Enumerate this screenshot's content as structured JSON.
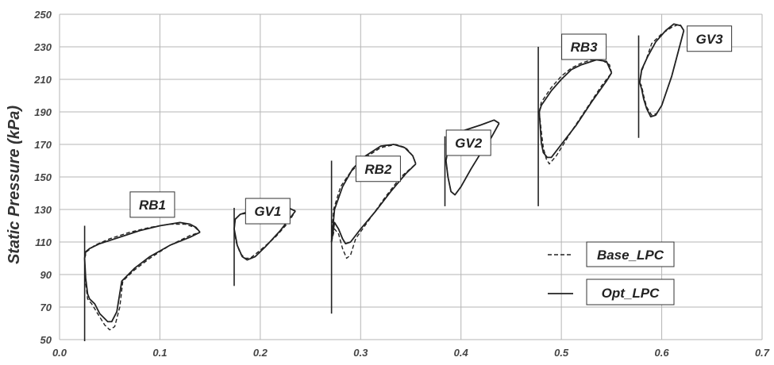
{
  "chart_data": {
    "type": "line",
    "title": "",
    "xlabel": "",
    "ylabel": "Static Pressure (kPa)",
    "xlim": [
      0.0,
      0.7
    ],
    "ylim": [
      50,
      250
    ],
    "x_ticks": [
      "0.0",
      "0.1",
      "0.2",
      "0.3",
      "0.4",
      "0.5",
      "0.6",
      "0.7"
    ],
    "y_ticks": [
      "50",
      "70",
      "90",
      "110",
      "130",
      "150",
      "170",
      "190",
      "210",
      "230",
      "250"
    ],
    "grid": true,
    "legend_position": "bottom-right",
    "legend": [
      "Base_LPC",
      "Opt_LPC"
    ],
    "blade_rows": [
      {
        "label": "RB1",
        "label_pos": [
          0.0925,
          133
        ],
        "base_upper": [
          [
            0.025,
            100
          ],
          [
            0.027,
            104
          ],
          [
            0.035,
            108
          ],
          [
            0.05,
            112
          ],
          [
            0.07,
            116
          ],
          [
            0.09,
            119
          ],
          [
            0.11,
            121
          ],
          [
            0.125,
            121
          ],
          [
            0.135,
            119
          ],
          [
            0.14,
            116
          ]
        ],
        "base_lower": [
          [
            0.025,
            100
          ],
          [
            0.026,
            85
          ],
          [
            0.028,
            75
          ],
          [
            0.032,
            72
          ],
          [
            0.038,
            66
          ],
          [
            0.045,
            59
          ],
          [
            0.05,
            56
          ],
          [
            0.055,
            58
          ],
          [
            0.06,
            70
          ],
          [
            0.063,
            86
          ],
          [
            0.075,
            93
          ],
          [
            0.09,
            100
          ],
          [
            0.11,
            108
          ],
          [
            0.13,
            114
          ],
          [
            0.14,
            116
          ]
        ],
        "opt_upper": [
          [
            0.025,
            100
          ],
          [
            0.026,
            104
          ],
          [
            0.03,
            106
          ],
          [
            0.04,
            109
          ],
          [
            0.06,
            113
          ],
          [
            0.08,
            117
          ],
          [
            0.1,
            120
          ],
          [
            0.12,
            122
          ],
          [
            0.13,
            121
          ],
          [
            0.136,
            119
          ],
          [
            0.14,
            116
          ]
        ],
        "opt_lower": [
          [
            0.025,
            100
          ],
          [
            0.026,
            88
          ],
          [
            0.028,
            78
          ],
          [
            0.03,
            75
          ],
          [
            0.035,
            72
          ],
          [
            0.04,
            66
          ],
          [
            0.048,
            61
          ],
          [
            0.052,
            61
          ],
          [
            0.057,
            67
          ],
          [
            0.062,
            86
          ],
          [
            0.075,
            94
          ],
          [
            0.09,
            101
          ],
          [
            0.11,
            108
          ],
          [
            0.13,
            113
          ],
          [
            0.14,
            116
          ]
        ]
      },
      {
        "label": "GV1",
        "label_pos": [
          0.2075,
          129
        ],
        "base_upper": [
          [
            0.174,
            118
          ],
          [
            0.175,
            124
          ],
          [
            0.18,
            127
          ],
          [
            0.19,
            128
          ],
          [
            0.2,
            130
          ],
          [
            0.215,
            131
          ],
          [
            0.228,
            131
          ],
          [
            0.235,
            129
          ]
        ],
        "base_lower": [
          [
            0.174,
            118
          ],
          [
            0.176,
            110
          ],
          [
            0.18,
            103
          ],
          [
            0.185,
            100
          ],
          [
            0.19,
            100
          ],
          [
            0.2,
            105
          ],
          [
            0.215,
            113
          ],
          [
            0.228,
            122
          ],
          [
            0.235,
            129
          ]
        ],
        "opt_upper": [
          [
            0.174,
            118
          ],
          [
            0.175,
            124
          ],
          [
            0.18,
            127
          ],
          [
            0.19,
            129
          ],
          [
            0.2,
            130
          ],
          [
            0.215,
            131
          ],
          [
            0.228,
            131
          ],
          [
            0.235,
            129
          ]
        ],
        "opt_lower": [
          [
            0.174,
            118
          ],
          [
            0.177,
            108
          ],
          [
            0.182,
            101
          ],
          [
            0.187,
            99
          ],
          [
            0.195,
            101
          ],
          [
            0.205,
            107
          ],
          [
            0.22,
            117
          ],
          [
            0.235,
            129
          ]
        ]
      },
      {
        "label": "RB2",
        "label_pos": [
          0.3175,
          155
        ],
        "base_upper": [
          [
            0.271,
            110
          ],
          [
            0.273,
            130
          ],
          [
            0.28,
            144
          ],
          [
            0.29,
            153
          ],
          [
            0.305,
            162
          ],
          [
            0.32,
            168
          ],
          [
            0.335,
            170
          ],
          [
            0.345,
            168
          ],
          [
            0.352,
            163
          ],
          [
            0.355,
            158
          ]
        ],
        "base_lower": [
          [
            0.271,
            110
          ],
          [
            0.274,
            118
          ],
          [
            0.278,
            115
          ],
          [
            0.282,
            106
          ],
          [
            0.286,
            100
          ],
          [
            0.29,
            102
          ],
          [
            0.295,
            112
          ],
          [
            0.31,
            125
          ],
          [
            0.325,
            138
          ],
          [
            0.34,
            150
          ],
          [
            0.355,
            158
          ]
        ],
        "opt_upper": [
          [
            0.271,
            110
          ],
          [
            0.274,
            130
          ],
          [
            0.282,
            144
          ],
          [
            0.292,
            155
          ],
          [
            0.305,
            163
          ],
          [
            0.32,
            169
          ],
          [
            0.333,
            170
          ],
          [
            0.344,
            168
          ],
          [
            0.352,
            163
          ],
          [
            0.355,
            158
          ]
        ],
        "opt_lower": [
          [
            0.271,
            110
          ],
          [
            0.274,
            122
          ],
          [
            0.278,
            118
          ],
          [
            0.282,
            112
          ],
          [
            0.285,
            109
          ],
          [
            0.29,
            110
          ],
          [
            0.3,
            118
          ],
          [
            0.315,
            129
          ],
          [
            0.33,
            141
          ],
          [
            0.345,
            152
          ],
          [
            0.355,
            158
          ]
        ]
      },
      {
        "label": "GV2",
        "label_pos": [
          0.4075,
          171
        ],
        "base_upper": [
          [
            0.385,
            160
          ],
          [
            0.387,
            166
          ],
          [
            0.392,
            172
          ],
          [
            0.4,
            178
          ],
          [
            0.41,
            180
          ],
          [
            0.42,
            182
          ],
          [
            0.433,
            185
          ],
          [
            0.438,
            183
          ]
        ],
        "base_lower": [
          [
            0.385,
            160
          ],
          [
            0.387,
            150
          ],
          [
            0.39,
            141
          ],
          [
            0.394,
            139
          ],
          [
            0.4,
            144
          ],
          [
            0.41,
            155
          ],
          [
            0.42,
            165
          ],
          [
            0.43,
            174
          ],
          [
            0.438,
            183
          ]
        ],
        "opt_upper": [
          [
            0.385,
            160
          ],
          [
            0.387,
            167
          ],
          [
            0.392,
            172
          ],
          [
            0.4,
            178
          ],
          [
            0.41,
            180
          ],
          [
            0.42,
            182
          ],
          [
            0.433,
            185
          ],
          [
            0.438,
            183
          ]
        ],
        "opt_lower": [
          [
            0.385,
            160
          ],
          [
            0.387,
            150
          ],
          [
            0.39,
            141
          ],
          [
            0.394,
            139
          ],
          [
            0.4,
            144
          ],
          [
            0.41,
            155
          ],
          [
            0.42,
            165
          ],
          [
            0.43,
            174
          ],
          [
            0.438,
            183
          ]
        ]
      },
      {
        "label": "RB3",
        "label_pos": [
          0.5225,
          230
        ],
        "base_upper": [
          [
            0.478,
            190
          ],
          [
            0.48,
            196
          ],
          [
            0.49,
            205
          ],
          [
            0.5,
            212
          ],
          [
            0.51,
            217
          ],
          [
            0.52,
            220
          ],
          [
            0.53,
            222
          ],
          [
            0.54,
            222
          ],
          [
            0.548,
            219
          ],
          [
            0.55,
            214
          ]
        ],
        "base_lower": [
          [
            0.478,
            190
          ],
          [
            0.48,
            178
          ],
          [
            0.482,
            168
          ],
          [
            0.485,
            161
          ],
          [
            0.488,
            158
          ],
          [
            0.495,
            163
          ],
          [
            0.51,
            178
          ],
          [
            0.525,
            192
          ],
          [
            0.54,
            206
          ],
          [
            0.55,
            214
          ]
        ],
        "opt_upper": [
          [
            0.478,
            190
          ],
          [
            0.48,
            194
          ],
          [
            0.49,
            203
          ],
          [
            0.5,
            210
          ],
          [
            0.51,
            216
          ],
          [
            0.52,
            219
          ],
          [
            0.535,
            222
          ],
          [
            0.545,
            221
          ],
          [
            0.55,
            214
          ]
        ],
        "opt_lower": [
          [
            0.478,
            190
          ],
          [
            0.48,
            171
          ],
          [
            0.482,
            165
          ],
          [
            0.486,
            162
          ],
          [
            0.49,
            162
          ],
          [
            0.5,
            170
          ],
          [
            0.515,
            182
          ],
          [
            0.53,
            196
          ],
          [
            0.545,
            209
          ],
          [
            0.55,
            214
          ]
        ]
      },
      {
        "label": "GV3",
        "label_pos": [
          0.6475,
          235
        ],
        "base_upper": [
          [
            0.578,
            208
          ],
          [
            0.58,
            215
          ],
          [
            0.585,
            223
          ],
          [
            0.59,
            232
          ],
          [
            0.6,
            238
          ],
          [
            0.61,
            242
          ],
          [
            0.618,
            244
          ],
          [
            0.622,
            240
          ]
        ],
        "base_lower": [
          [
            0.578,
            208
          ],
          [
            0.58,
            206
          ],
          [
            0.582,
            200
          ],
          [
            0.585,
            193
          ],
          [
            0.59,
            188
          ],
          [
            0.595,
            189
          ],
          [
            0.6,
            194
          ],
          [
            0.61,
            212
          ],
          [
            0.622,
            240
          ]
        ],
        "opt_upper": [
          [
            0.578,
            208
          ],
          [
            0.58,
            216
          ],
          [
            0.586,
            224
          ],
          [
            0.594,
            233
          ],
          [
            0.604,
            240
          ],
          [
            0.612,
            244
          ],
          [
            0.619,
            243
          ],
          [
            0.622,
            240
          ]
        ],
        "opt_lower": [
          [
            0.578,
            208
          ],
          [
            0.58,
            204
          ],
          [
            0.582,
            198
          ],
          [
            0.585,
            192
          ],
          [
            0.589,
            187
          ],
          [
            0.594,
            188
          ],
          [
            0.6,
            194
          ],
          [
            0.61,
            212
          ],
          [
            0.622,
            240
          ]
        ]
      }
    ],
    "spikes": [
      {
        "x": 0.025,
        "y": [
          49,
          120
        ]
      },
      {
        "x": 0.174,
        "y": [
          83,
          131
        ]
      },
      {
        "x": 0.271,
        "y": [
          66,
          160
        ]
      },
      {
        "x": 0.384,
        "y": [
          132,
          175
        ]
      },
      {
        "x": 0.477,
        "y": [
          132,
          230
        ]
      },
      {
        "x": 0.577,
        "y": [
          174,
          237
        ]
      }
    ]
  }
}
